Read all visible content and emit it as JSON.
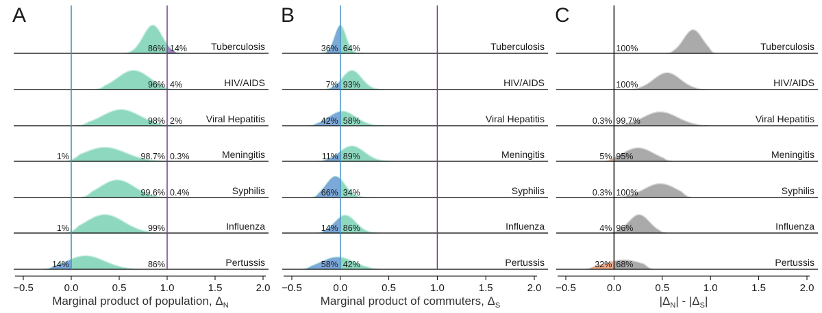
{
  "colors": {
    "teal": "#8fd8c0",
    "teal_edge": "#c8eee0",
    "blue": "#6f9ed6",
    "purple": "#a787c4",
    "gray": "#aaaaaa",
    "gray_edge": "#dddddd",
    "orange": "#f0a07c",
    "ref_blue": "#3d8cc4",
    "ref_purple": "#7a3a8c"
  },
  "chart_data": [
    {
      "type": "area",
      "panel_label": "A",
      "xlabel_main": "Marginal product of population, Δ",
      "xlabel_sub": "N",
      "xlim": [
        -0.6,
        2.0
      ],
      "xticks": [
        "−0.5",
        "0.0",
        "0.5",
        "1.0",
        "1.5",
        "2.0"
      ],
      "xtick_values": [
        -0.5,
        0.0,
        0.5,
        1.0,
        1.5,
        2.0
      ],
      "reference_lines": [
        0.0,
        1.0
      ],
      "rows": [
        {
          "disease": "Tuberculosis",
          "mode": 0.85,
          "spread": 0.1,
          "range": [
            0.55,
            1.15
          ],
          "peak": 1.25,
          "left_pct": "86%",
          "right_pct": "14%"
        },
        {
          "disease": "HIV/AIDS",
          "mode": 0.65,
          "spread": 0.17,
          "range": [
            0.25,
            1.05
          ],
          "peak": 0.85,
          "left_pct": "96%",
          "right_pct": "4%"
        },
        {
          "disease": "Viral Hepatitis",
          "mode": 0.52,
          "spread": 0.2,
          "range": [
            0.05,
            1.05
          ],
          "peak": 0.72,
          "left_pct": "98%",
          "right_pct": "2%"
        },
        {
          "disease": "Meningitis",
          "mode": 0.35,
          "spread": 0.22,
          "range": [
            -0.05,
            1.05
          ],
          "peak": 0.62,
          "left_of_zero_pct": "1%",
          "left_pct": "98.7%",
          "right_pct": "0.3%"
        },
        {
          "disease": "Syphilis",
          "mode": 0.48,
          "spread": 0.18,
          "range": [
            0.1,
            1.0
          ],
          "peak": 0.78,
          "left_pct": "99.6%",
          "right_pct": "0.4%"
        },
        {
          "disease": "Influenza",
          "mode": 0.35,
          "spread": 0.2,
          "range": [
            -0.05,
            0.95
          ],
          "peak": 0.82,
          "left_of_zero_pct": "1%",
          "left_pct": "99%",
          "right_pct": ""
        },
        {
          "disease": "Pertussis",
          "mode": 0.15,
          "spread": 0.2,
          "range": [
            -0.3,
            0.7
          ],
          "peak": 0.6,
          "left_of_zero_pct": "14%",
          "left_pct": "86%",
          "right_pct": ""
        }
      ]
    },
    {
      "type": "area",
      "panel_label": "B",
      "xlabel_main": "Marginal product of commuters, Δ",
      "xlabel_sub": "S",
      "xlim": [
        -0.6,
        2.0
      ],
      "xticks": [
        "−0.5",
        "0.0",
        "0.5",
        "1.0",
        "1.5",
        "2.0"
      ],
      "xtick_values": [
        -0.5,
        0.0,
        0.5,
        1.0,
        1.5,
        2.0
      ],
      "reference_lines": [
        0.0,
        1.0
      ],
      "rows": [
        {
          "disease": "Tuberculosis",
          "mode": 0.0,
          "spread": 0.06,
          "range": [
            -0.25,
            0.25
          ],
          "peak": 1.25,
          "left_pct": "36%",
          "right_pct": "64%"
        },
        {
          "disease": "HIV/AIDS",
          "mode": 0.12,
          "spread": 0.1,
          "range": [
            -0.2,
            0.45
          ],
          "peak": 0.85,
          "left_pct": "7%",
          "right_pct": "93%"
        },
        {
          "disease": "Viral Hepatitis",
          "mode": 0.02,
          "spread": 0.14,
          "range": [
            -0.35,
            0.45
          ],
          "peak": 0.65,
          "left_pct": "42%",
          "right_pct": "58%"
        },
        {
          "disease": "Meningitis",
          "mode": 0.12,
          "spread": 0.13,
          "range": [
            -0.25,
            0.55
          ],
          "peak": 0.68,
          "left_pct": "11%",
          "right_pct": "89%"
        },
        {
          "disease": "Syphilis",
          "mode": -0.05,
          "spread": 0.1,
          "range": [
            -0.3,
            0.3
          ],
          "peak": 0.95,
          "left_pct": "66%",
          "right_pct": "34%"
        },
        {
          "disease": "Influenza",
          "mode": 0.05,
          "spread": 0.11,
          "range": [
            -0.25,
            0.4
          ],
          "peak": 0.8,
          "left_pct": "14%",
          "right_pct": "86%"
        },
        {
          "disease": "Pertussis",
          "mode": -0.03,
          "spread": 0.17,
          "range": [
            -0.4,
            0.4
          ],
          "peak": 0.55,
          "left_pct": "58%",
          "right_pct": "42%"
        }
      ]
    },
    {
      "type": "area",
      "panel_label": "C",
      "xlabel_main": "|Δ",
      "xlabel_sub": "N",
      "xlabel_mid": "| - |Δ",
      "xlabel_sub2": "S",
      "xlabel_end": "|",
      "xlim": [
        -0.6,
        2.0
      ],
      "xticks": [
        "−0.5",
        "0.0",
        "0.5",
        "1.0",
        "1.5",
        "2.0"
      ],
      "xtick_values": [
        -0.5,
        0.0,
        0.5,
        1.0,
        1.5,
        2.0
      ],
      "reference_lines": [
        0.0
      ],
      "rows": [
        {
          "disease": "Tuberculosis",
          "mode": 0.82,
          "spread": 0.1,
          "range": [
            0.55,
            1.05
          ],
          "peak": 1.05,
          "left_pct": "",
          "right_pct": "100%"
        },
        {
          "disease": "HIV/AIDS",
          "mode": 0.55,
          "spread": 0.14,
          "range": [
            0.15,
            0.95
          ],
          "peak": 0.75,
          "left_pct": "",
          "right_pct": "100%"
        },
        {
          "disease": "Viral Hepatitis",
          "mode": 0.48,
          "spread": 0.18,
          "range": [
            0.0,
            1.0
          ],
          "peak": 0.62,
          "left_pct": "0.3%",
          "right_pct": "99.7%"
        },
        {
          "disease": "Meningitis",
          "mode": 0.25,
          "spread": 0.16,
          "range": [
            -0.1,
            0.6
          ],
          "peak": 0.6,
          "left_pct": "5%",
          "right_pct": "95%"
        },
        {
          "disease": "Syphilis",
          "mode": 0.48,
          "spread": 0.17,
          "range": [
            0.0,
            0.8
          ],
          "peak": 0.62,
          "left_pct": "0.3%",
          "right_pct": "100%"
        },
        {
          "disease": "Influenza",
          "mode": 0.26,
          "spread": 0.11,
          "range": [
            -0.05,
            0.55
          ],
          "peak": 0.82,
          "left_pct": "4%",
          "right_pct": "96%"
        },
        {
          "disease": "Pertussis",
          "mode": 0.1,
          "spread": 0.2,
          "range": [
            -0.3,
            0.4
          ],
          "peak": 0.42,
          "left_pct": "32%",
          "right_pct": "68%"
        }
      ]
    }
  ]
}
